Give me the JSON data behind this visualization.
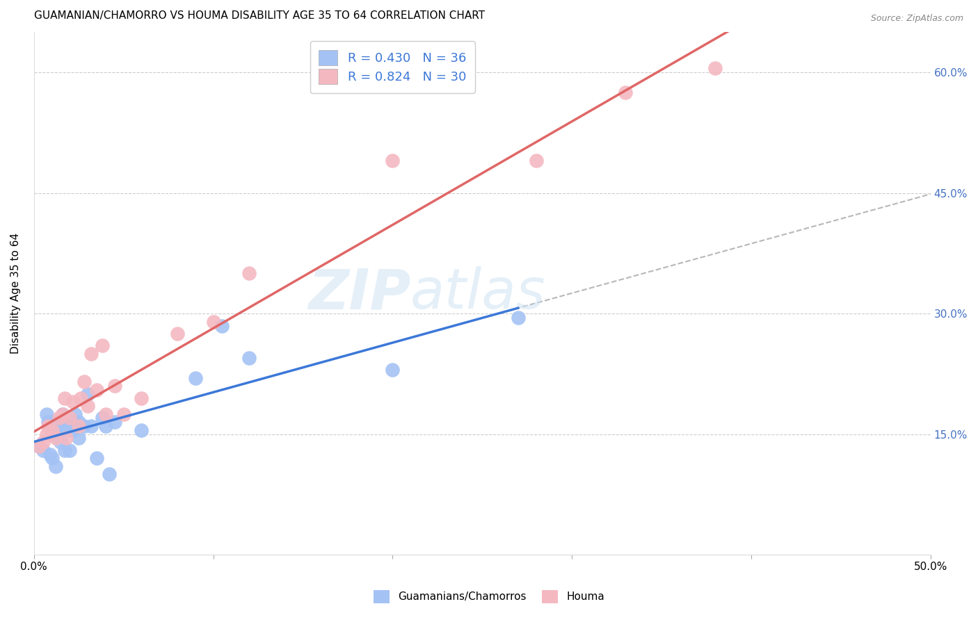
{
  "title": "GUAMANIAN/CHAMORRO VS HOUMA DISABILITY AGE 35 TO 64 CORRELATION CHART",
  "source": "Source: ZipAtlas.com",
  "ylabel": "Disability Age 35 to 64",
  "xlim": [
    0.0,
    0.5
  ],
  "ylim": [
    0.0,
    0.65
  ],
  "ytick_positions": [
    0.0,
    0.15,
    0.3,
    0.45,
    0.6
  ],
  "xtick_positions": [
    0.0,
    0.1,
    0.2,
    0.3,
    0.4,
    0.5
  ],
  "legend_r1": "R = 0.430",
  "legend_n1": "N = 36",
  "legend_r2": "R = 0.824",
  "legend_n2": "N = 30",
  "blue_color": "#a4c2f4",
  "pink_color": "#f4b8c1",
  "blue_line_color": "#3c78d8",
  "pink_line_color": "#e06666",
  "dashed_line_color": "#b7b7b7",
  "watermark_color": "#cfe2f3",
  "axis_label_color": "#4472c4",
  "guamanian_x": [
    0.003,
    0.005,
    0.007,
    0.008,
    0.009,
    0.01,
    0.01,
    0.01,
    0.012,
    0.013,
    0.015,
    0.015,
    0.016,
    0.017,
    0.018,
    0.019,
    0.02,
    0.02,
    0.022,
    0.023,
    0.025,
    0.025,
    0.028,
    0.03,
    0.032,
    0.035,
    0.038,
    0.04,
    0.042,
    0.045,
    0.06,
    0.09,
    0.105,
    0.12,
    0.2,
    0.27
  ],
  "guamanian_y": [
    0.135,
    0.13,
    0.175,
    0.165,
    0.125,
    0.12,
    0.15,
    0.165,
    0.11,
    0.165,
    0.14,
    0.16,
    0.175,
    0.13,
    0.155,
    0.16,
    0.13,
    0.16,
    0.155,
    0.175,
    0.145,
    0.165,
    0.16,
    0.2,
    0.16,
    0.12,
    0.17,
    0.16,
    0.1,
    0.165,
    0.155,
    0.22,
    0.285,
    0.245,
    0.23,
    0.295
  ],
  "houma_x": [
    0.003,
    0.005,
    0.007,
    0.008,
    0.01,
    0.012,
    0.014,
    0.016,
    0.017,
    0.018,
    0.02,
    0.022,
    0.025,
    0.026,
    0.028,
    0.03,
    0.032,
    0.035,
    0.038,
    0.04,
    0.045,
    0.05,
    0.06,
    0.08,
    0.1,
    0.12,
    0.2,
    0.28,
    0.33,
    0.38
  ],
  "houma_y": [
    0.135,
    0.14,
    0.15,
    0.16,
    0.155,
    0.145,
    0.17,
    0.175,
    0.195,
    0.145,
    0.17,
    0.19,
    0.16,
    0.195,
    0.215,
    0.185,
    0.25,
    0.205,
    0.26,
    0.175,
    0.21,
    0.175,
    0.195,
    0.275,
    0.29,
    0.35,
    0.49,
    0.49,
    0.575,
    0.605
  ],
  "blue_line_x": [
    0.0,
    0.5
  ],
  "blue_line_y_start": 0.13,
  "blue_line_slope": 0.345,
  "pink_line_x": [
    0.0,
    0.5
  ],
  "pink_line_y_start": 0.13,
  "pink_line_slope": 1.18,
  "dash_line_x": [
    0.0,
    0.5
  ],
  "dash_line_y_start": 0.0,
  "dash_line_slope": 0.9
}
